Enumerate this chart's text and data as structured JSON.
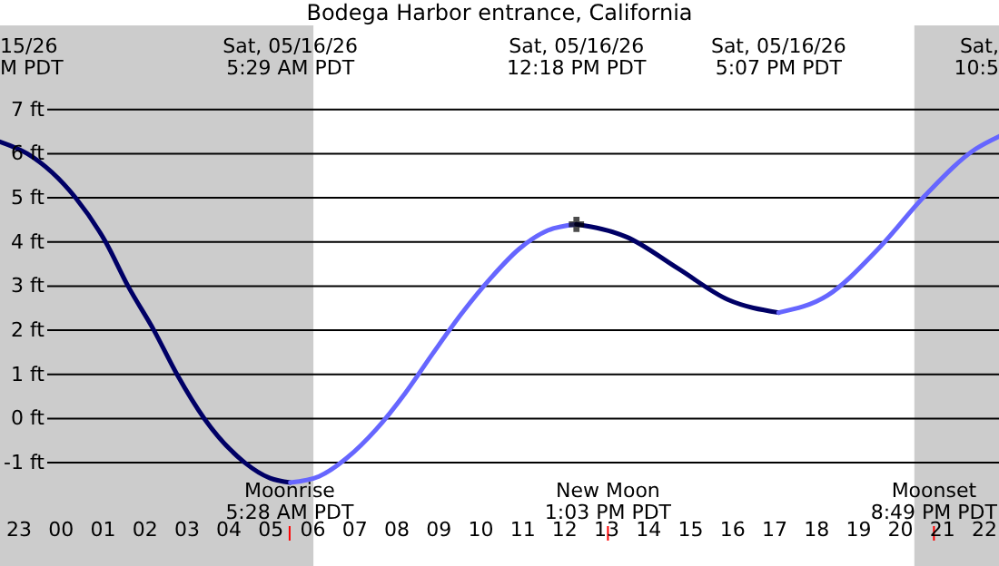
{
  "chart_data": {
    "type": "line",
    "title": "Bodega Harbor entrance, California",
    "xlim": [
      "--05-15T22:34",
      "--05-16T22:22"
    ],
    "ylim": [
      -3.34,
      9.48
    ],
    "xticks": [
      {
        "value": "--05-15T23:00",
        "label": "23"
      },
      {
        "value": "--05-16T00:00",
        "label": "00"
      },
      {
        "value": "--05-16T01:00",
        "label": "01"
      },
      {
        "value": "--05-16T02:00",
        "label": "02"
      },
      {
        "value": "--05-16T03:00",
        "label": "03"
      },
      {
        "value": "--05-16T04:00",
        "label": "04"
      },
      {
        "value": "--05-16T05:00",
        "label": "05"
      },
      {
        "value": "--05-16T06:00",
        "label": "06"
      },
      {
        "value": "--05-16T07:00",
        "label": "07"
      },
      {
        "value": "--05-16T08:00",
        "label": "08"
      },
      {
        "value": "--05-16T09:00",
        "label": "09"
      },
      {
        "value": "--05-16T10:00",
        "label": "10"
      },
      {
        "value": "--05-16T11:00",
        "label": "11"
      },
      {
        "value": "--05-16T12:00",
        "label": "12"
      },
      {
        "value": "--05-16T13:00",
        "label": "13"
      },
      {
        "value": "--05-16T14:00",
        "label": "14"
      },
      {
        "value": "--05-16T15:00",
        "label": "15"
      },
      {
        "value": "--05-16T16:00",
        "label": "16"
      },
      {
        "value": "--05-16T17:00",
        "label": "17"
      },
      {
        "value": "--05-16T18:00",
        "label": "18"
      },
      {
        "value": "--05-16T19:00",
        "label": "19"
      },
      {
        "value": "--05-16T20:00",
        "label": "20"
      },
      {
        "value": "--05-16T21:00",
        "label": "21"
      },
      {
        "value": "--05-16T22:00",
        "label": "22"
      }
    ],
    "yticks": [
      {
        "value": -1,
        "label": "-1 ft"
      },
      {
        "value": 0,
        "label": "0 ft"
      },
      {
        "value": 1,
        "label": "1 ft"
      },
      {
        "value": 2,
        "label": "2 ft"
      },
      {
        "value": 3,
        "label": "3 ft"
      },
      {
        "value": 4,
        "label": "4 ft"
      },
      {
        "value": 5,
        "label": "5 ft"
      },
      {
        "value": 6,
        "label": "6 ft"
      },
      {
        "value": 7,
        "label": "7 ft"
      }
    ],
    "grid": "y",
    "series": [
      {
        "color": "#000066",
        "x": [
          "--05-15T22:34",
          "--05-15T23:13",
          "--05-16T00:22",
          "--05-16T01:05",
          "--05-16T01:37",
          "--05-16T02:14",
          "--05-16T02:47",
          "--05-16T03:26",
          "--05-16T04:24",
          "--05-16T05:00",
          "--05-16T05:29"
        ],
        "values": [
          6.27,
          6.0,
          5.0,
          4.0,
          3.0,
          2.0,
          1.0,
          0.0,
          -1.0,
          -1.35,
          -1.45
        ]
      },
      {
        "color": "#6666ff",
        "x": [
          "--05-16T05:29",
          "--05-16T06:10",
          "--05-16T06:50",
          "--05-16T07:32",
          "--05-16T08:13",
          "--05-16T08:53",
          "--05-16T09:34",
          "--05-16T10:16",
          "--05-16T10:56",
          "--05-16T11:37",
          "--05-16T12:18"
        ],
        "values": [
          -1.45,
          -1.31,
          -0.89,
          -0.24,
          0.57,
          1.48,
          2.38,
          3.19,
          3.84,
          4.26,
          4.4
        ]
      },
      {
        "color": "#000066",
        "x": [
          "--05-16T12:18",
          "--05-16T13:30",
          "--05-16T14:43",
          "--05-16T15:55",
          "--05-16T17:07"
        ],
        "values": [
          4.4,
          4.11,
          3.4,
          2.69,
          2.4
        ]
      },
      {
        "color": "#6666ff",
        "x": [
          "--05-16T17:07",
          "--05-16T18:17",
          "--05-16T19:28",
          "--05-16T20:38",
          "--05-16T21:49",
          "--05-16T22:22"
        ],
        "values": [
          2.4,
          2.79,
          3.82,
          5.08,
          6.11,
          6.39
        ]
      },
      {
        "type": "scatter",
        "marker": "cross",
        "color": "#000000",
        "x": [
          "--05-16T12:18"
        ],
        "values": [
          4.4
        ]
      }
    ],
    "bands": [
      {
        "axis": "x",
        "from": "--05-15T22:34",
        "to": "--05-16T06:02",
        "color": "#cccccc"
      },
      {
        "axis": "x",
        "from": "--05-16T20:21",
        "to": "--05-16T22:22",
        "color": "#cccccc"
      }
    ],
    "ref_lines": [
      {
        "axis": "x",
        "value": "--05-16T05:28",
        "label": "Moonrise\n5:28 AM PDT",
        "color": "#ff0000"
      },
      {
        "axis": "x",
        "value": "--05-16T13:03",
        "label": "New Moon\n1:03 PM PDT",
        "color": "#ff0000"
      },
      {
        "axis": "x",
        "value": "--05-16T20:49",
        "label": "Moonset\n8:49 PM PDT",
        "color": "#ff0000"
      }
    ],
    "annotations": [
      "15/26\nM PDT",
      "Sat, 05/16/26\n5:29 AM PDT",
      "Sat, 05/16/26\n12:18 PM PDT",
      "Sat, 05/16/26\n5:07 PM PDT",
      "Sat,\n10:5"
    ]
  }
}
